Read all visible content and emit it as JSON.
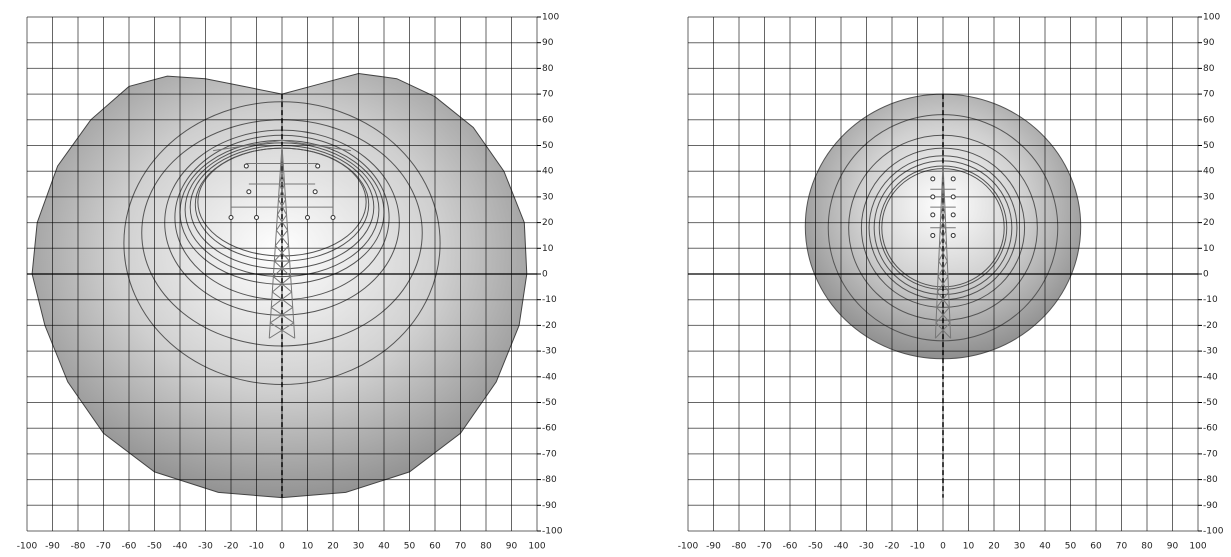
{
  "panels": [
    {
      "xticks": [
        -100,
        -90,
        -80,
        -70,
        -60,
        -50,
        -40,
        -30,
        -20,
        -10,
        0,
        10,
        20,
        30,
        40,
        50,
        60,
        70,
        80,
        90,
        100
      ],
      "yticks": [
        100,
        90,
        80,
        70,
        60,
        50,
        40,
        30,
        20,
        10,
        0,
        -10,
        -20,
        -30,
        -40,
        -50,
        -60,
        -70,
        -80,
        -90,
        -100
      ]
    },
    {
      "xticks": [
        -100,
        -90,
        -80,
        -70,
        -60,
        -50,
        -40,
        -30,
        -20,
        -10,
        0,
        10,
        20,
        30,
        40,
        50,
        60,
        70,
        80,
        90,
        100
      ],
      "yticks": [
        100,
        90,
        80,
        70,
        60,
        50,
        40,
        30,
        20,
        10,
        0,
        -10,
        -20,
        -30,
        -40,
        -50,
        -60,
        -70,
        -80,
        -90,
        -100
      ]
    }
  ]
}
